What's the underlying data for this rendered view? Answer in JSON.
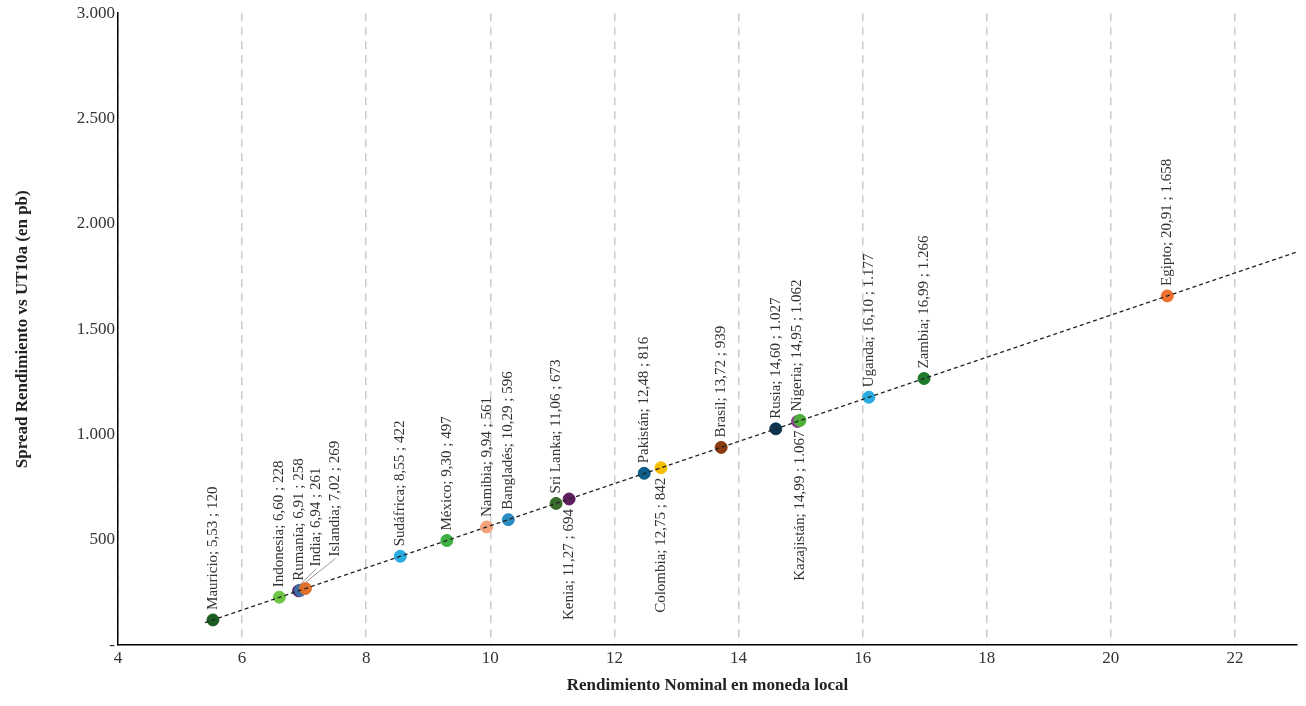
{
  "chart_data": {
    "type": "scatter",
    "xlabel": "Rendimiento Nominal en moneda local",
    "ylabel": "Spread Rendimiento vs UT10a (en pb)",
    "xlim": [
      4,
      23
    ],
    "xticks": [
      4,
      6,
      8,
      10,
      12,
      14,
      16,
      18,
      20,
      22
    ],
    "ylim": [
      0,
      3000
    ],
    "yticks": [
      {
        "value": 0,
        "label": "-"
      },
      500,
      {
        "value": 1000,
        "label": "1.000"
      },
      {
        "value": 1500,
        "label": "1.500"
      },
      {
        "value": 2000,
        "label": "2.000"
      },
      {
        "value": 2500,
        "label": "2.500"
      },
      {
        "value": 3000,
        "label": "3.000"
      }
    ],
    "grid": "x",
    "marker": "circle",
    "series": [
      {
        "type": "line",
        "x": [
          5.4,
          23
        ],
        "values": [
          107,
          1867
        ],
        "color": "#222222",
        "line_style": "dashed",
        "marker": "none"
      },
      {
        "x": [
          5.53,
          6.6,
          6.91,
          6.94,
          7.02,
          8.55,
          9.3,
          9.94,
          10.29,
          11.06,
          11.27,
          12.48,
          12.75,
          13.72,
          14.6,
          14.95,
          14.99,
          16.1,
          16.99,
          20.91
        ],
        "values": [
          120,
          228,
          258,
          261,
          269,
          422,
          497,
          561,
          596,
          673,
          694,
          816,
          842,
          939,
          1027,
          1062,
          1067,
          1177,
          1266,
          1658
        ],
        "colors": [
          "#1b5e20",
          "#6cc644",
          "#5b2a6e",
          "#3a6ea5",
          "#e0702a",
          "#29abe2",
          "#3cb043",
          "#f4a27a",
          "#2b8cc4",
          "#3a6b2a",
          "#5e1f5e",
          "#0f5f8a",
          "#f5c000",
          "#8b3a0f",
          "#0e3550",
          "#8e3a8e",
          "#4caf3a",
          "#29abe2",
          "#1e7a2a",
          "#f07030"
        ],
        "value_labels": [
          "Mauricio; 5,53 ; 120",
          "Indonesia; 6,60 ; 228",
          "Rumanía; 6,91 ; 258",
          "India; 6,94 ; 261",
          "Islandia; 7,02 ; 269",
          "Sudáfrica; 8,55 ; 422",
          "México; 9,30 ; 497",
          "Namibia; 9,94 ; 561",
          "Bangladés; 10,29 ; 596",
          "Sri Lanka; 11,06 ; 673",
          "Kenia; 11,27 ; 694",
          "Pakistán; 12,48 ; 816",
          "Colombia; 12,75 ; 842",
          "Brasil; 13,72 ; 939",
          "Rusia; 14,60 ; 1.027",
          "Nigeria; 14,95 ; 1.062",
          "Kazajistán; 14,99 ; 1.067",
          "Uganda; 16,10 ; 1.177",
          "Zambia; 16,99 ; 1.266",
          "Egipto; 20,91 ; 1.658"
        ]
      }
    ]
  }
}
